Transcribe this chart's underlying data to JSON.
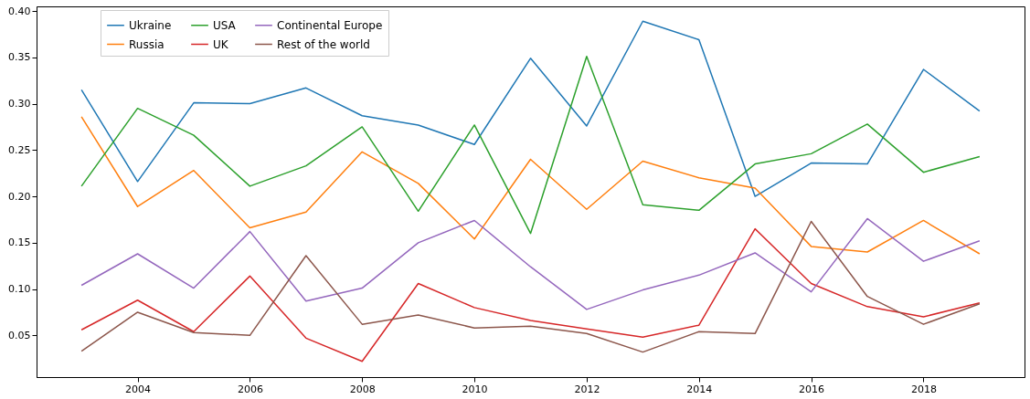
{
  "chart_data": {
    "type": "line",
    "x": [
      2003,
      2004,
      2005,
      2006,
      2007,
      2008,
      2009,
      2010,
      2011,
      2012,
      2013,
      2014,
      2015,
      2016,
      2017,
      2018,
      2019
    ],
    "series": [
      {
        "name": "Ukraine",
        "color": "#1f77b4",
        "values": [
          0.315,
          0.216,
          0.301,
          0.3,
          0.317,
          0.287,
          0.277,
          0.256,
          0.349,
          0.276,
          0.389,
          0.369,
          0.2,
          0.236,
          0.235,
          0.337,
          0.292
        ]
      },
      {
        "name": "Russia",
        "color": "#ff7f0e",
        "values": [
          0.286,
          0.189,
          0.228,
          0.166,
          0.183,
          0.248,
          0.214,
          0.154,
          0.24,
          0.186,
          0.238,
          0.22,
          0.209,
          0.146,
          0.14,
          0.174,
          0.138
        ]
      },
      {
        "name": "USA",
        "color": "#2ca02c",
        "values": [
          0.211,
          0.295,
          0.266,
          0.211,
          0.233,
          0.275,
          0.184,
          0.277,
          0.16,
          0.351,
          0.191,
          0.185,
          0.235,
          0.246,
          0.278,
          0.226,
          0.243
        ]
      },
      {
        "name": "UK",
        "color": "#d62728",
        "values": [
          0.056,
          0.088,
          0.054,
          0.114,
          0.047,
          0.022,
          0.106,
          0.08,
          0.066,
          0.057,
          0.048,
          0.061,
          0.165,
          0.106,
          0.081,
          0.07,
          0.085
        ]
      },
      {
        "name": "Continental Europe",
        "color": "#9467bd",
        "values": [
          0.104,
          0.138,
          0.101,
          0.162,
          0.087,
          0.101,
          0.15,
          0.174,
          0.124,
          0.078,
          0.099,
          0.115,
          0.139,
          0.097,
          0.176,
          0.13,
          0.152
        ]
      },
      {
        "name": "Rest of the world",
        "color": "#8c564b",
        "values": [
          0.033,
          0.075,
          0.053,
          0.05,
          0.136,
          0.062,
          0.072,
          0.058,
          0.06,
          0.052,
          0.032,
          0.054,
          0.052,
          0.173,
          0.092,
          0.062,
          0.084
        ]
      }
    ],
    "xlim": [
      2002.2,
      2019.8
    ],
    "xticks": [
      2004,
      2006,
      2008,
      2010,
      2012,
      2014,
      2016,
      2018
    ],
    "ylim": [
      0.005,
      0.405
    ],
    "yticks": [
      0.05,
      {
        "value": 0.1,
        "label": "0.10"
      },
      0.15,
      {
        "value": 0.2,
        "label": "0.20"
      },
      0.25,
      {
        "value": 0.3,
        "label": "0.30"
      },
      0.35,
      {
        "value": 0.4,
        "label": "0.40"
      }
    ],
    "legend": "top left",
    "grid": false,
    "marker": "none",
    "line_style": "solid"
  }
}
